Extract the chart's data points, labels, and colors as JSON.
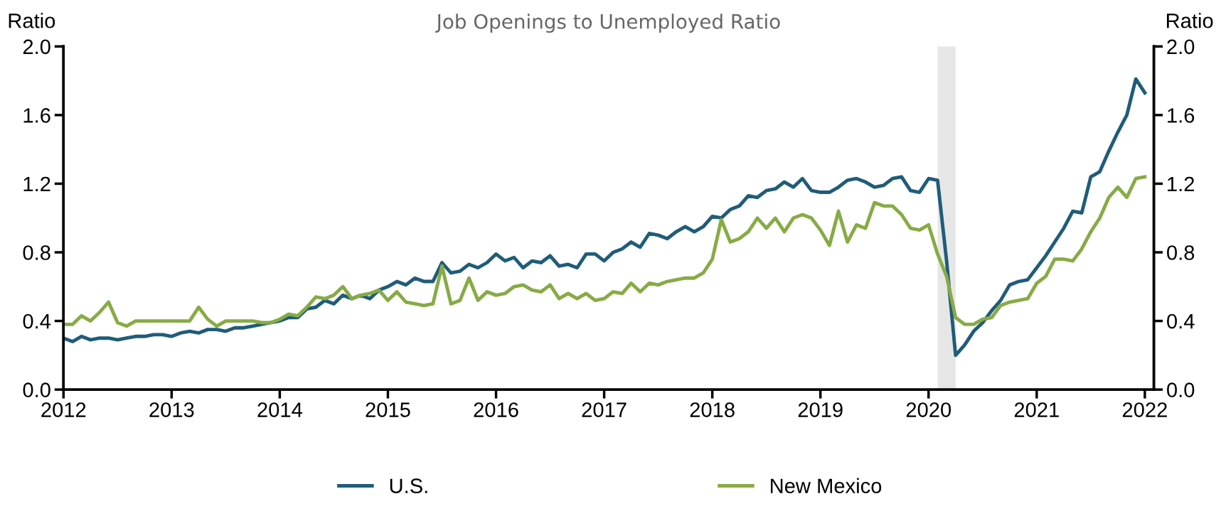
{
  "chart_data": {
    "type": "line",
    "title": "Job Openings to Unemployed Ratio",
    "ylabel": "Ratio",
    "y2label": "Ratio",
    "x": [
      "2012-01",
      "2012-02",
      "2012-03",
      "2012-04",
      "2012-05",
      "2012-06",
      "2012-07",
      "2012-08",
      "2012-09",
      "2012-10",
      "2012-11",
      "2012-12",
      "2013-01",
      "2013-02",
      "2013-03",
      "2013-04",
      "2013-05",
      "2013-06",
      "2013-07",
      "2013-08",
      "2013-09",
      "2013-10",
      "2013-11",
      "2013-12",
      "2014-01",
      "2014-02",
      "2014-03",
      "2014-04",
      "2014-05",
      "2014-06",
      "2014-07",
      "2014-08",
      "2014-09",
      "2014-10",
      "2014-11",
      "2014-12",
      "2015-01",
      "2015-02",
      "2015-03",
      "2015-04",
      "2015-05",
      "2015-06",
      "2015-07",
      "2015-08",
      "2015-09",
      "2015-10",
      "2015-11",
      "2015-12",
      "2016-01",
      "2016-02",
      "2016-03",
      "2016-04",
      "2016-05",
      "2016-06",
      "2016-07",
      "2016-08",
      "2016-09",
      "2016-10",
      "2016-11",
      "2016-12",
      "2017-01",
      "2017-02",
      "2017-03",
      "2017-04",
      "2017-05",
      "2017-06",
      "2017-07",
      "2017-08",
      "2017-09",
      "2017-10",
      "2017-11",
      "2017-12",
      "2018-01",
      "2018-02",
      "2018-03",
      "2018-04",
      "2018-05",
      "2018-06",
      "2018-07",
      "2018-08",
      "2018-09",
      "2018-10",
      "2018-11",
      "2018-12",
      "2019-01",
      "2019-02",
      "2019-03",
      "2019-04",
      "2019-05",
      "2019-06",
      "2019-07",
      "2019-08",
      "2019-09",
      "2019-10",
      "2019-11",
      "2019-12",
      "2020-01",
      "2020-02",
      "2020-03",
      "2020-04",
      "2020-05",
      "2020-06",
      "2020-07",
      "2020-08",
      "2020-09",
      "2020-10",
      "2020-11",
      "2020-12",
      "2021-01",
      "2021-02",
      "2021-03",
      "2021-04",
      "2021-05",
      "2021-06",
      "2021-07",
      "2021-08",
      "2021-09",
      "2021-10",
      "2021-11",
      "2021-12",
      "2022-01"
    ],
    "series": [
      {
        "name": "U.S.",
        "color": "#1f5c7a",
        "values": [
          0.3,
          0.28,
          0.31,
          0.29,
          0.3,
          0.3,
          0.29,
          0.3,
          0.31,
          0.31,
          0.32,
          0.32,
          0.31,
          0.33,
          0.34,
          0.33,
          0.35,
          0.35,
          0.34,
          0.36,
          0.36,
          0.37,
          0.38,
          0.39,
          0.4,
          0.42,
          0.42,
          0.47,
          0.48,
          0.52,
          0.5,
          0.55,
          0.53,
          0.55,
          0.53,
          0.58,
          0.6,
          0.63,
          0.61,
          0.65,
          0.63,
          0.63,
          0.74,
          0.68,
          0.69,
          0.73,
          0.71,
          0.74,
          0.79,
          0.75,
          0.77,
          0.71,
          0.75,
          0.74,
          0.78,
          0.72,
          0.73,
          0.71,
          0.79,
          0.79,
          0.75,
          0.8,
          0.82,
          0.86,
          0.83,
          0.91,
          0.9,
          0.88,
          0.92,
          0.95,
          0.92,
          0.95,
          1.01,
          1.0,
          1.05,
          1.07,
          1.13,
          1.12,
          1.16,
          1.17,
          1.21,
          1.18,
          1.23,
          1.16,
          1.15,
          1.15,
          1.18,
          1.22,
          1.23,
          1.21,
          1.18,
          1.19,
          1.23,
          1.24,
          1.16,
          1.15,
          1.23,
          1.22,
          0.75,
          0.2,
          0.26,
          0.34,
          0.39,
          0.46,
          0.52,
          0.61,
          0.63,
          0.64,
          0.71,
          0.78,
          0.86,
          0.94,
          1.04,
          1.03,
          1.24,
          1.27,
          1.39,
          1.5,
          1.6,
          1.81,
          1.73
        ]
      },
      {
        "name": "New Mexico",
        "color": "#87ab45",
        "values": [
          0.38,
          0.38,
          0.43,
          0.4,
          0.45,
          0.51,
          0.39,
          0.37,
          0.4,
          0.4,
          0.4,
          0.4,
          0.4,
          0.4,
          0.4,
          0.48,
          0.41,
          0.37,
          0.4,
          0.4,
          0.4,
          0.4,
          0.39,
          0.39,
          0.41,
          0.44,
          0.43,
          0.48,
          0.54,
          0.53,
          0.55,
          0.6,
          0.53,
          0.55,
          0.56,
          0.58,
          0.52,
          0.57,
          0.51,
          0.5,
          0.49,
          0.5,
          0.72,
          0.5,
          0.52,
          0.65,
          0.52,
          0.57,
          0.55,
          0.56,
          0.6,
          0.61,
          0.58,
          0.57,
          0.61,
          0.53,
          0.56,
          0.53,
          0.56,
          0.52,
          0.53,
          0.57,
          0.56,
          0.62,
          0.57,
          0.62,
          0.61,
          0.63,
          0.64,
          0.65,
          0.65,
          0.68,
          0.76,
          0.99,
          0.86,
          0.88,
          0.92,
          1.0,
          0.94,
          1.0,
          0.92,
          1.0,
          1.02,
          1.0,
          0.93,
          0.84,
          1.04,
          0.86,
          0.96,
          0.94,
          1.09,
          1.07,
          1.07,
          1.02,
          0.94,
          0.93,
          0.96,
          0.79,
          0.66,
          0.42,
          0.38,
          0.38,
          0.41,
          0.42,
          0.49,
          0.51,
          0.52,
          0.53,
          0.62,
          0.66,
          0.76,
          0.76,
          0.75,
          0.82,
          0.92,
          1.0,
          1.12,
          1.18,
          1.12,
          1.23,
          1.24
        ]
      }
    ],
    "xlim": [
      "2012-01",
      "2022-02"
    ],
    "xticks": [
      "2012",
      "2013",
      "2014",
      "2015",
      "2016",
      "2017",
      "2018",
      "2019",
      "2020",
      "2021",
      "2022"
    ],
    "ylim": [
      0,
      2.0
    ],
    "yticks": [
      {
        "value": 0,
        "label": "0.0"
      },
      {
        "value": 0.4,
        "label": "0.4"
      },
      {
        "value": 0.8,
        "label": "0.8"
      },
      {
        "value": 1.2,
        "label": "1.2"
      },
      {
        "value": 1.6,
        "label": "1.6"
      },
      {
        "value": 2.0,
        "label": "2.0"
      }
    ],
    "y2lim": [
      0,
      2.0
    ],
    "y2ticks": [
      {
        "value": 0,
        "label": "0.0"
      },
      {
        "value": 0.4,
        "label": "0.4"
      },
      {
        "value": 0.8,
        "label": "0.8"
      },
      {
        "value": 1.2,
        "label": "1.2"
      },
      {
        "value": 1.6,
        "label": "1.6"
      },
      {
        "value": 2.0,
        "label": "2.0"
      }
    ],
    "bands": [
      {
        "axis": "x",
        "from": "2020-02",
        "to": "2020-04",
        "color": "#e6e6e6"
      }
    ],
    "grid": false,
    "legend": "bottom",
    "marker": "none",
    "line_style": "solid"
  }
}
